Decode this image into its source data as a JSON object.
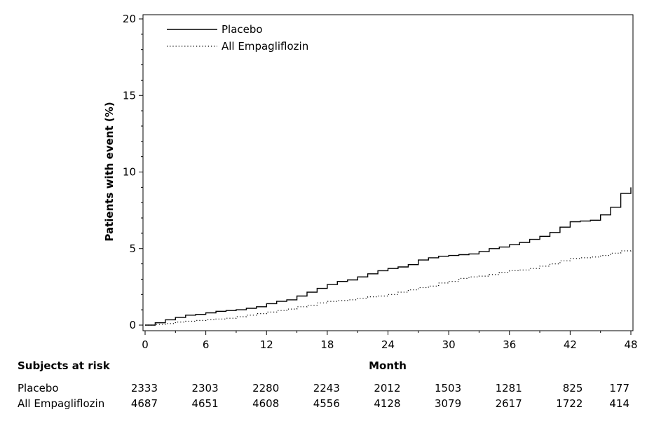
{
  "chart_data": {
    "type": "line",
    "xlabel": "Month",
    "ylabel": "Patients with event (%)",
    "xlim": [
      0,
      48
    ],
    "ylim": [
      0,
      20
    ],
    "x_ticks": [
      "0",
      "6",
      "12",
      "18",
      "24",
      "30",
      "36",
      "42",
      "48"
    ],
    "y_ticks": [
      "0",
      "5",
      "10",
      "15",
      "20"
    ],
    "grid": false,
    "legend_position": "top-left",
    "series": [
      {
        "name": "Placebo",
        "style": "solid",
        "color": "#000000",
        "points": [
          [
            0,
            0
          ],
          [
            1,
            0.15
          ],
          [
            2,
            0.35
          ],
          [
            3,
            0.5
          ],
          [
            4,
            0.65
          ],
          [
            5,
            0.7
          ],
          [
            6,
            0.8
          ],
          [
            7,
            0.9
          ],
          [
            8,
            0.95
          ],
          [
            9,
            1.0
          ],
          [
            10,
            1.1
          ],
          [
            11,
            1.2
          ],
          [
            12,
            1.4
          ],
          [
            13,
            1.55
          ],
          [
            14,
            1.65
          ],
          [
            15,
            1.9
          ],
          [
            16,
            2.15
          ],
          [
            17,
            2.4
          ],
          [
            18,
            2.65
          ],
          [
            19,
            2.85
          ],
          [
            20,
            2.95
          ],
          [
            21,
            3.15
          ],
          [
            22,
            3.35
          ],
          [
            23,
            3.55
          ],
          [
            24,
            3.7
          ],
          [
            25,
            3.8
          ],
          [
            26,
            3.95
          ],
          [
            27,
            4.25
          ],
          [
            28,
            4.4
          ],
          [
            29,
            4.5
          ],
          [
            30,
            4.55
          ],
          [
            31,
            4.6
          ],
          [
            32,
            4.65
          ],
          [
            33,
            4.8
          ],
          [
            34,
            5.0
          ],
          [
            35,
            5.1
          ],
          [
            36,
            5.25
          ],
          [
            37,
            5.4
          ],
          [
            38,
            5.6
          ],
          [
            39,
            5.8
          ],
          [
            40,
            6.05
          ],
          [
            41,
            6.4
          ],
          [
            42,
            6.75
          ],
          [
            43,
            6.8
          ],
          [
            44,
            6.85
          ],
          [
            45,
            7.2
          ],
          [
            46,
            7.7
          ],
          [
            47,
            8.6
          ],
          [
            48,
            9.0
          ]
        ]
      },
      {
        "name": "All Empagliflozin",
        "style": "dotted",
        "color": "#000000",
        "points": [
          [
            0,
            0
          ],
          [
            1,
            0.05
          ],
          [
            2,
            0.1
          ],
          [
            3,
            0.2
          ],
          [
            4,
            0.25
          ],
          [
            5,
            0.3
          ],
          [
            6,
            0.35
          ],
          [
            7,
            0.4
          ],
          [
            8,
            0.45
          ],
          [
            9,
            0.55
          ],
          [
            10,
            0.65
          ],
          [
            11,
            0.75
          ],
          [
            12,
            0.85
          ],
          [
            13,
            0.95
          ],
          [
            14,
            1.05
          ],
          [
            15,
            1.2
          ],
          [
            16,
            1.3
          ],
          [
            17,
            1.45
          ],
          [
            18,
            1.55
          ],
          [
            19,
            1.6
          ],
          [
            20,
            1.65
          ],
          [
            21,
            1.75
          ],
          [
            22,
            1.85
          ],
          [
            23,
            1.9
          ],
          [
            24,
            2.0
          ],
          [
            25,
            2.15
          ],
          [
            26,
            2.3
          ],
          [
            27,
            2.45
          ],
          [
            28,
            2.55
          ],
          [
            29,
            2.75
          ],
          [
            30,
            2.85
          ],
          [
            31,
            3.05
          ],
          [
            32,
            3.15
          ],
          [
            33,
            3.2
          ],
          [
            34,
            3.3
          ],
          [
            35,
            3.45
          ],
          [
            36,
            3.55
          ],
          [
            37,
            3.6
          ],
          [
            38,
            3.7
          ],
          [
            39,
            3.85
          ],
          [
            40,
            4.0
          ],
          [
            41,
            4.2
          ],
          [
            42,
            4.35
          ],
          [
            43,
            4.4
          ],
          [
            44,
            4.45
          ],
          [
            45,
            4.55
          ],
          [
            46,
            4.7
          ],
          [
            47,
            4.85
          ],
          [
            48,
            4.95
          ]
        ]
      }
    ],
    "risk_table": {
      "title": "Subjects at risk",
      "x": [
        0,
        6,
        12,
        18,
        24,
        30,
        36,
        42,
        48
      ],
      "rows": [
        {
          "label": "Placebo",
          "values": [
            "2333",
            "2303",
            "2280",
            "2243",
            "2012",
            "1503",
            "1281",
            "825",
            "177"
          ]
        },
        {
          "label": "All Empagliflozin",
          "values": [
            "4687",
            "4651",
            "4608",
            "4556",
            "4128",
            "3079",
            "2617",
            "1722",
            "414"
          ]
        }
      ]
    }
  }
}
